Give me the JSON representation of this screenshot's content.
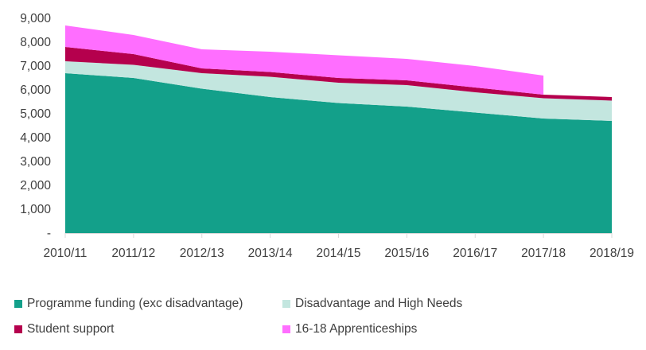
{
  "chart_data": {
    "type": "area",
    "stacked": true,
    "title": "",
    "xlabel": "",
    "ylabel": "",
    "ylim": [
      0,
      9000
    ],
    "y_ticks": [
      0,
      1000,
      2000,
      3000,
      4000,
      5000,
      6000,
      7000,
      8000,
      9000
    ],
    "y_tick_labels": [
      "-",
      "1,000",
      "2,000",
      "3,000",
      "4,000",
      "5,000",
      "6,000",
      "7,000",
      "8,000",
      "9,000"
    ],
    "categories": [
      "2010/11",
      "2011/12",
      "2012/13",
      "2013/14",
      "2014/15",
      "2015/16",
      "2016/17",
      "2017/18",
      "2018/19"
    ],
    "grid": false,
    "legend_position": "bottom",
    "series": [
      {
        "name": "Programme funding (exc disadvantage)",
        "color": "#13a08a",
        "values": [
          6700,
          6500,
          6050,
          5700,
          5450,
          5300,
          5050,
          4800,
          4700
        ]
      },
      {
        "name": "Disadvantage and High Needs",
        "color": "#c3e6df",
        "values": [
          500,
          550,
          650,
          850,
          850,
          900,
          850,
          850,
          850
        ]
      },
      {
        "name": "Student support",
        "color": "#b5004d",
        "values": [
          600,
          450,
          200,
          200,
          200,
          200,
          200,
          150,
          150
        ]
      },
      {
        "name": "16-18 Apprenticeships",
        "color": "#ff6eff",
        "values": [
          900,
          800,
          800,
          850,
          950,
          900,
          900,
          800,
          null
        ]
      }
    ],
    "legend_order": [
      0,
      1,
      2,
      3
    ]
  }
}
